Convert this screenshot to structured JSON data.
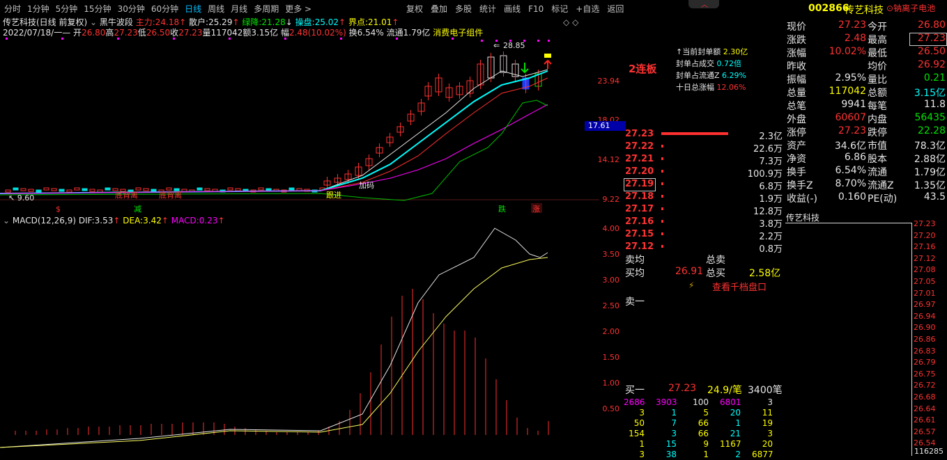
{
  "toolbar": {
    "periods": [
      "分时",
      "1分钟",
      "5分钟",
      "15分钟",
      "30分钟",
      "60分钟",
      "日线",
      "周线",
      "月线",
      "多周期",
      "更多 >"
    ],
    "active": "日线",
    "menu": [
      "复权",
      "叠加",
      "多股",
      "统计",
      "画线",
      "F10",
      "标记",
      "+自选",
      "返回"
    ]
  },
  "header": {
    "code": "002866",
    "name": "传艺科技",
    "concept": "钠离子电池",
    "title": "传艺科技(日线 前复权)",
    "indicator": "黑牛波段",
    "main_label": "主力:",
    "main_val": "24.18",
    "san_label": "散户:",
    "san_val": "25.29",
    "lj_label": "绿降:",
    "lj_val": "21.28",
    "cp_label": "操盘:",
    "cp_val": "25.02",
    "jd_label": "界点:",
    "jd_val": "21.01"
  },
  "ohlc": {
    "date": "2022/07/18/一",
    "open_label": "开",
    "open": "26.80",
    "high_label": "高",
    "high": "27.23",
    "low_label": "低",
    "low": "26.50",
    "close_label": "收",
    "close": "27.23",
    "vol_label": "量",
    "vol": "117042",
    "amt_label": "额",
    "amt": "3.15亿",
    "chg_label": "幅",
    "chg": "2.48(10.02%)",
    "turn_label": "换",
    "turn": "6.54%",
    "flow_label": "流通",
    "flow": "1.79亿",
    "tag": "消费电子组件"
  },
  "chart": {
    "max_label": "28.85",
    "yaxis": [
      "23.94",
      "18.02",
      "14.12",
      "9.22"
    ],
    "crosshair": "17.61",
    "low_label": "9.60",
    "annots": [
      "底背离",
      "底背离",
      "跟进",
      "加码"
    ],
    "signals": {
      "s": "$",
      "jian": "减",
      "die": "跌",
      "zhang": "涨"
    },
    "lianban": "2连板",
    "limit_info": [
      {
        "label": "当前封单额",
        "val": "2.30亿"
      },
      {
        "label": "封单占成交",
        "val": "0.72倍"
      },
      {
        "label": "封单占流通Z",
        "val": "6.29%"
      },
      {
        "label": "十日总涨幅",
        "val": "12.06%"
      }
    ]
  },
  "macd": {
    "title": "MACD(12,26,9)",
    "dif_label": "DIF:",
    "dif": "3.53",
    "dea_label": "DEA:",
    "dea": "3.42",
    "macd_label": "MACD:",
    "macd": "0.23",
    "yaxis": [
      "4.00",
      "3.50",
      "3.00",
      "2.50",
      "2.00",
      "1.50",
      "1.00",
      "0.50"
    ]
  },
  "quote": [
    {
      "l1": "现价",
      "v1": "27.23",
      "l2": "今开",
      "v2": "26.80"
    },
    {
      "l1": "涨跌",
      "v1": "2.48",
      "l2": "最高",
      "v2": "27.23"
    },
    {
      "l1": "涨幅",
      "v1": "10.02%",
      "l2": "最低",
      "v2": "26.50"
    },
    {
      "l1": "昨收",
      "v1": "",
      "l2": "均价",
      "v2": "26.92"
    },
    {
      "l1": "振幅",
      "v1": "2.95%",
      "l2": "量比",
      "v2": "0.21"
    },
    {
      "l1": "总量",
      "v1": "117042",
      "l2": "总额",
      "v2": "3.15亿"
    },
    {
      "l1": "总笔",
      "v1": "9941",
      "l2": "每笔",
      "v2": "11.8"
    },
    {
      "l1": "外盘",
      "v1": "60607",
      "l2": "内盘",
      "v2": "56435"
    },
    {
      "l1": "涨停",
      "v1": "27.23",
      "l2": "跌停",
      "v2": "22.28"
    },
    {
      "l1": "资产",
      "v1": "34.6亿",
      "l2": "市值",
      "v2": "78.3亿"
    },
    {
      "l1": "净资",
      "v1": "6.86",
      "l2": "股本",
      "v2": "2.88亿"
    },
    {
      "l1": "换手",
      "v1": "6.54%",
      "l2": "流通",
      "v2": "1.79亿"
    },
    {
      "l1": "换手Z",
      "v1": "8.70%",
      "l2": "流通Z",
      "v2": "1.35亿"
    },
    {
      "l1": "收益(-)",
      "v1": "0.160",
      "l2": "PE(动)",
      "v2": "43.5"
    }
  ],
  "orderbook": {
    "rows": [
      {
        "p": "27.23",
        "v": "2.3亿"
      },
      {
        "p": "27.22",
        "v": "22.6万"
      },
      {
        "p": "27.21",
        "v": "7.3万"
      },
      {
        "p": "27.20",
        "v": "100.9万"
      },
      {
        "p": "27.19",
        "v": "6.8万"
      },
      {
        "p": "27.18",
        "v": "1.9万"
      },
      {
        "p": "27.17",
        "v": "12.8万"
      },
      {
        "p": "27.16",
        "v": "3.8万"
      },
      {
        "p": "27.15",
        "v": "2.2万"
      },
      {
        "p": "27.12",
        "v": "0.8万"
      }
    ],
    "sell_avg_label": "卖均",
    "sell_total_label": "总卖",
    "buy_avg_label": "买均",
    "buy_avg": "26.91",
    "buy_total_label": "总买",
    "buy_total": "2.58亿",
    "view_label": "查看千档盘口",
    "sell1_label": "卖一",
    "buy1_label": "买一",
    "buy1_price": "27.23",
    "buy1_avg": "24.9/笔",
    "buy1_count": "3400笔",
    "deals": [
      [
        "2686",
        "3903",
        "100",
        "6801",
        "3"
      ],
      [
        "3",
        "1",
        "5",
        "20",
        "11"
      ],
      [
        "50",
        "7",
        "66",
        "1",
        "19"
      ],
      [
        "154",
        "3",
        "66",
        "21",
        "3"
      ],
      [
        "1",
        "15",
        "9",
        "1167",
        "20"
      ],
      [
        "3",
        "38",
        "1",
        "2",
        "6877"
      ]
    ]
  },
  "mini": {
    "name": "传艺科技",
    "levels": [
      "27.23",
      "27.20",
      "27.16",
      "27.12",
      "27.08",
      "27.05",
      "27.01",
      "26.97",
      "26.94",
      "26.90",
      "26.86",
      "26.83",
      "26.79",
      "26.75",
      "26.72",
      "26.68",
      "26.64",
      "26.61",
      "26.57",
      "26.54"
    ],
    "vol": "116285"
  }
}
